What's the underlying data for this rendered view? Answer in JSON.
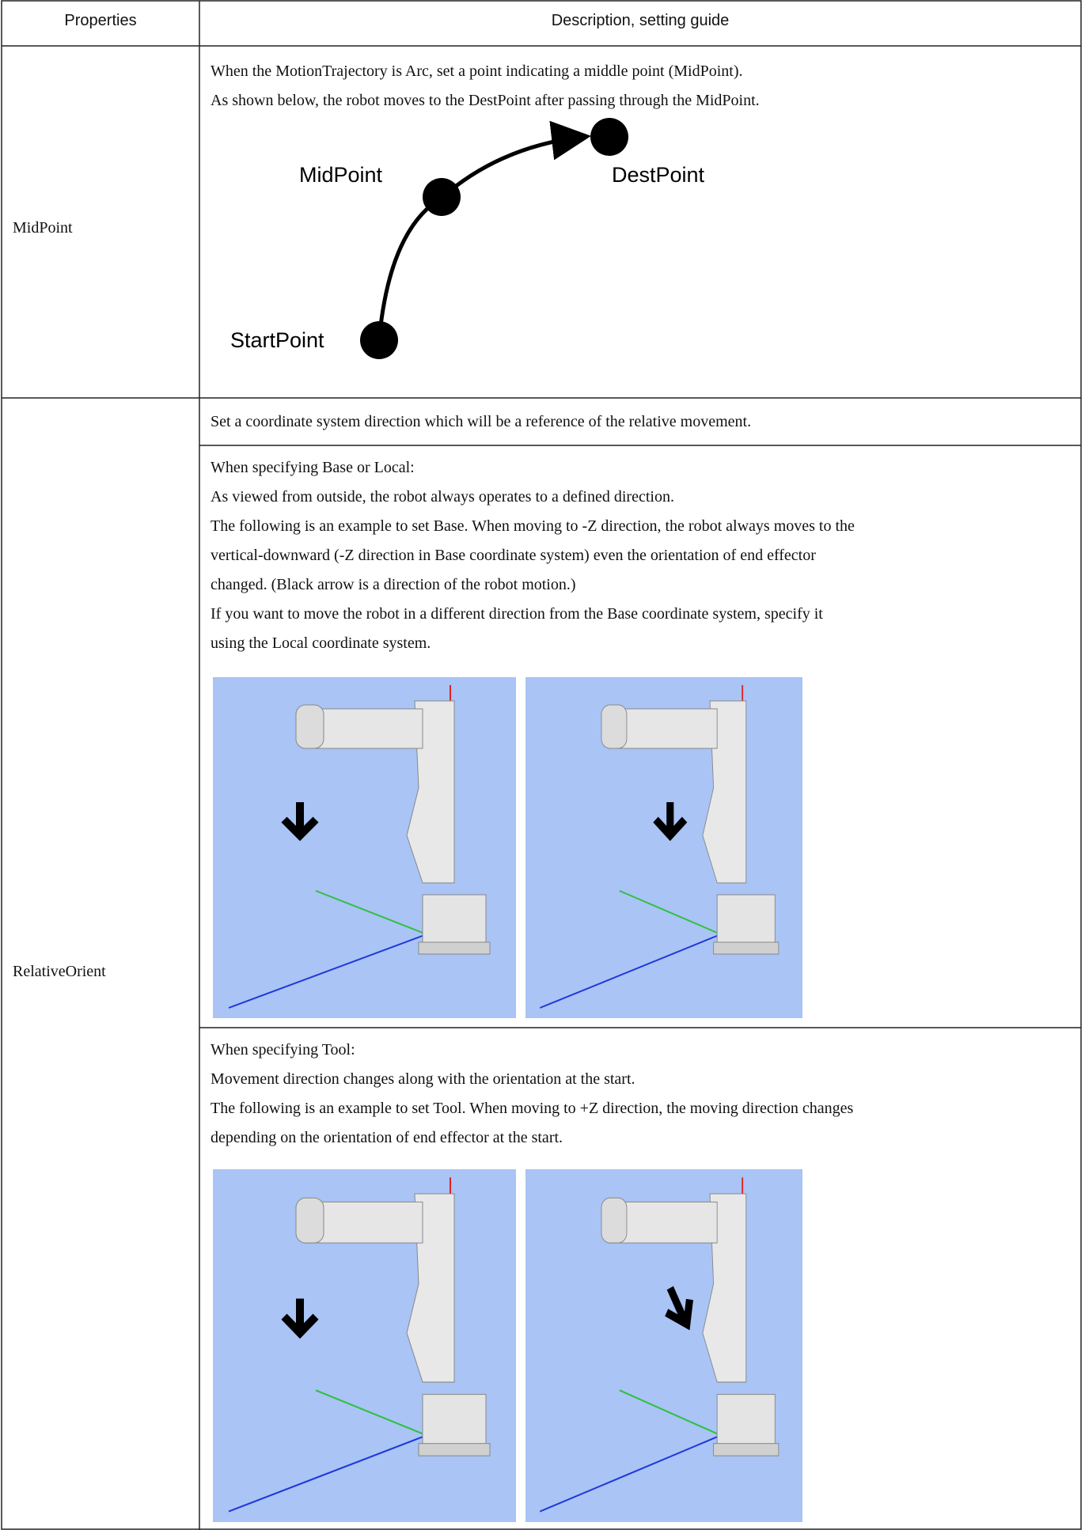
{
  "table": {
    "headers": [
      "Properties",
      "Description, setting guide"
    ],
    "rows": [
      {
        "property": "MidPoint",
        "lines": [
          "When the MotionTrajectory is Arc, set a point indicating a middle point (MidPoint).",
          "As shown below, the robot moves to the DestPoint after passing through the MidPoint."
        ],
        "diagram": {
          "start": "StartPoint",
          "mid": "MidPoint",
          "dest": "DestPoint"
        }
      },
      {
        "property": "RelativeOrient",
        "sections": [
          {
            "lines": [
              "Set a coordinate system direction which will be a reference of the relative movement."
            ]
          },
          {
            "lines": [
              "When specifying Base or Local:",
              "As viewed from outside, the robot always operates to a defined direction.",
              "The following is an example to set Base. When moving to -Z direction, the robot always moves to the",
              "vertical-downward (-Z direction in Base coordinate system) even the orientation of end effector",
              "changed. (Black arrow is a direction of the robot motion.)",
              "If you want to move the robot in a different direction from the Base coordinate system, specify it",
              "using the Local coordinate system."
            ]
          },
          {
            "lines": [
              "When specifying Tool:",
              "Movement direction changes along with the orientation at the start.",
              "The following is an example to set Tool. When moving to +Z direction, the moving direction changes",
              "depending on the orientation of end effector at the start."
            ]
          }
        ]
      }
    ]
  }
}
